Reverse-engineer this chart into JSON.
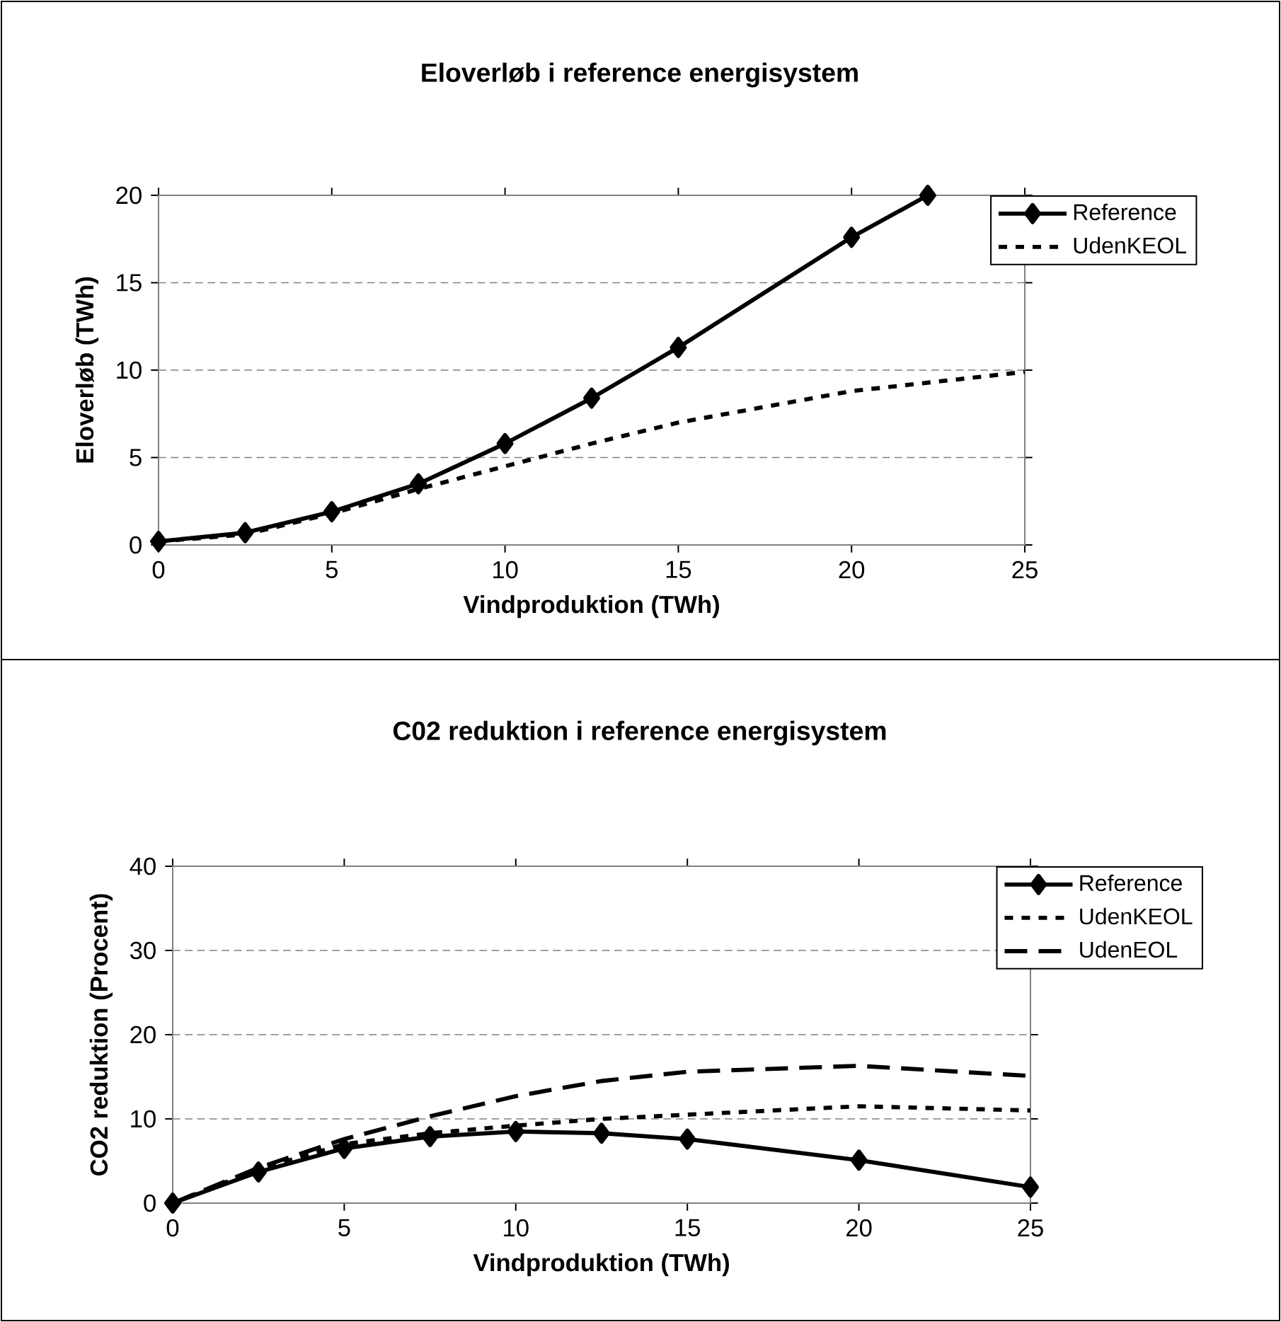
{
  "chart_data": [
    {
      "type": "line",
      "title": "Eloverløb i reference energisystem",
      "xlabel": "Vindproduktion (TWh)",
      "ylabel": "Eloverløb (TWh)",
      "x": [
        0,
        2.5,
        5,
        7.5,
        10,
        12.5,
        15,
        20,
        25
      ],
      "series": [
        {
          "name": "Reference",
          "color": "#000000",
          "marker": "diamond",
          "line_style": "solid",
          "x": [
            0,
            2.5,
            5,
            7.5,
            10,
            12.5,
            15,
            20,
            22.2
          ],
          "values": [
            0.2,
            0.7,
            1.9,
            3.5,
            5.8,
            8.4,
            11.3,
            17.6,
            20.0
          ]
        },
        {
          "name": "UdenKEOL",
          "color": "#000000",
          "marker": "none",
          "line_style": "dotted",
          "values": [
            0.2,
            0.6,
            1.8,
            3.2,
            4.5,
            5.8,
            7.0,
            8.8,
            9.9
          ]
        }
      ],
      "xlim": [
        0,
        25
      ],
      "xticks": [
        0,
        5,
        10,
        15,
        20,
        25
      ],
      "ylim": [
        0,
        20
      ],
      "yticks": [
        0,
        5,
        10,
        15,
        20
      ],
      "grid": "y",
      "legend": "top right"
    },
    {
      "type": "line",
      "title": "C02 reduktion i reference energisystem",
      "xlabel": "Vindproduktion (TWh)",
      "ylabel": "CO2 reduktion (Procent)",
      "x": [
        0,
        2.5,
        5,
        7.5,
        10,
        12.5,
        15,
        20,
        25
      ],
      "series": [
        {
          "name": "Reference",
          "color": "#000000",
          "marker": "diamond",
          "line_style": "solid",
          "values": [
            0,
            3.7,
            6.5,
            7.9,
            8.5,
            8.3,
            7.6,
            5.1,
            1.9
          ]
        },
        {
          "name": "UdenKEOL",
          "color": "#000000",
          "marker": "none",
          "line_style": "dotted",
          "values": [
            0,
            4.0,
            7.0,
            8.3,
            9.2,
            10.0,
            10.5,
            11.5,
            11.0
          ]
        },
        {
          "name": "UdenEOL",
          "color": "#000000",
          "marker": "none",
          "line_style": "dashed",
          "values": [
            0,
            4.2,
            7.6,
            10.3,
            12.7,
            14.5,
            15.6,
            16.3,
            15.1
          ]
        }
      ],
      "xlim": [
        0,
        25
      ],
      "xticks": [
        0,
        5,
        10,
        15,
        20,
        25
      ],
      "ylim": [
        0,
        40
      ],
      "yticks": [
        0,
        10,
        20,
        30,
        40
      ],
      "grid": "y",
      "legend": "top right"
    }
  ]
}
